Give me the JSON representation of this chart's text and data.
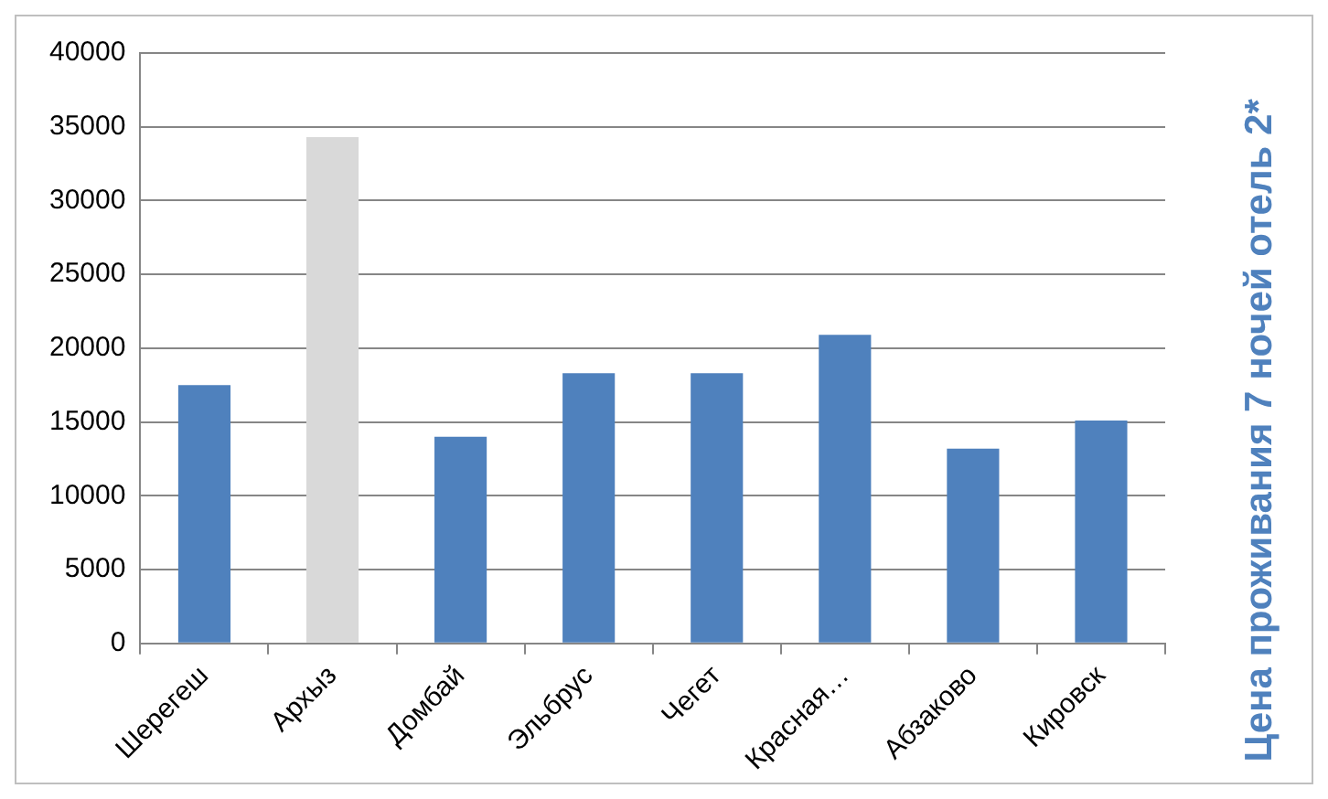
{
  "chart_data": {
    "type": "bar",
    "ylabel": "Цена проживания 7 ночей отель 2*",
    "categories": [
      "Шерегеш",
      "Архыз",
      "Домбай",
      "Эльбрус",
      "Чегет",
      "Красная…",
      "Абзаково",
      "Кировск"
    ],
    "values": [
      17500,
      34300,
      14000,
      18300,
      18300,
      20900,
      13200,
      15100
    ],
    "colors": [
      "#4f81bd",
      "#d9d9d9",
      "#4f81bd",
      "#4f81bd",
      "#4f81bd",
      "#4f81bd",
      "#4f81bd",
      "#4f81bd"
    ],
    "ylim": [
      0,
      40000
    ],
    "yticks": [
      0,
      5000,
      10000,
      15000,
      20000,
      25000,
      30000,
      35000,
      40000
    ],
    "grid": "y",
    "legend": false
  }
}
